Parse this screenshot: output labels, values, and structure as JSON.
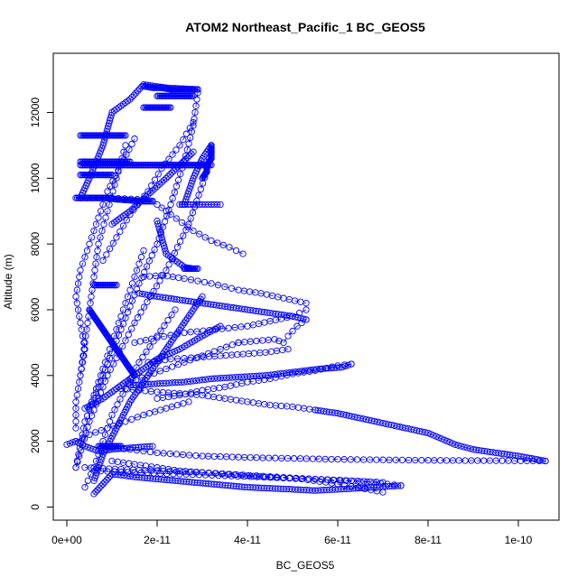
{
  "chart_data": {
    "type": "scatter",
    "title": "ATOM2 Northeast_Pacific_1 BC_GEOS5",
    "xlabel": "BC_GEOS5",
    "ylabel": "Altitude (m)",
    "xlim": [
      -3e-12,
      1.09e-10
    ],
    "ylim": [
      -400,
      13800
    ],
    "x_ticks": [
      0,
      2e-11,
      4e-11,
      6e-11,
      8e-11,
      1e-10
    ],
    "x_tick_labels": [
      "0e+00",
      "2e-11",
      "4e-11",
      "6e-11",
      "8e-11",
      "1e-10"
    ],
    "y_ticks": [
      0,
      2000,
      4000,
      6000,
      8000,
      10000,
      12000
    ],
    "y_tick_labels": [
      "0",
      "2000",
      "4000",
      "6000",
      "8000",
      "10000",
      "12000"
    ],
    "marker": "open-circle",
    "connected": true,
    "grid": false,
    "legend": "none",
    "colors": {
      "series": "#0000ff",
      "axis": "#000000",
      "background": "#ffffff"
    },
    "series": [
      {
        "x": [
          3e-12,
          5e-12,
          8e-12,
          1e-11,
          1.4e-11,
          1.7e-11,
          2.2e-11,
          2.9e-11
        ],
        "y": [
          9400,
          10000,
          11000,
          12000,
          12400,
          12850,
          12750,
          12700
        ]
      },
      {
        "x": [
          2.9e-11,
          2.8e-11,
          2.6e-11,
          2.3e-11,
          2e-11,
          1.6e-11,
          1.2e-11,
          8e-12,
          4e-12,
          2e-12
        ],
        "y": [
          12600,
          11600,
          10500,
          9200,
          8000,
          6800,
          5400,
          4000,
          2600,
          1200
        ]
      },
      {
        "x": [
          2e-12,
          5e-12,
          9e-12,
          1.5e-11,
          2.2e-11,
          2.7e-11,
          3.1e-11,
          3.2e-11
        ],
        "y": [
          1200,
          2600,
          4000,
          5600,
          7200,
          8600,
          10200,
          11000
        ]
      },
      {
        "x": [
          3.2e-11,
          3e-11,
          2.8e-11,
          2.7e-11,
          2.6e-11,
          2.5e-11,
          2.8e-11,
          3.4e-11
        ],
        "y": [
          11000,
          10600,
          10000,
          9600,
          9200,
          9200,
          9200,
          9200
        ]
      },
      {
        "x": [
          3e-12,
          1e-11,
          1.7e-11,
          1.9e-11
        ],
        "y": [
          9400,
          9400,
          9350,
          9300
        ]
      },
      {
        "x": [
          1.9e-11,
          2.3e-11,
          2.8e-11,
          3.2e-11,
          3.6e-11,
          3.9e-11
        ],
        "y": [
          9300,
          8900,
          8400,
          8100,
          7900,
          7700
        ]
      },
      {
        "x": [
          2e-11,
          2.1e-11,
          2.2e-11,
          2.6e-11,
          2.8e-11
        ],
        "y": [
          8700,
          8200,
          7700,
          7300,
          7250
        ]
      },
      {
        "x": [
          1.7e-11,
          2.1e-11,
          2.6e-11,
          3.2e-11,
          3.8e-11,
          4.3e-11,
          4.8e-11,
          5.3e-11
        ],
        "y": [
          7000,
          7050,
          6950,
          6800,
          6600,
          6500,
          6350,
          6200
        ]
      },
      {
        "x": [
          5.3e-11,
          5e-11,
          4.5e-11,
          4e-11,
          3.3e-11,
          2.6e-11,
          2e-11,
          1.5e-11
        ],
        "y": [
          6000,
          5800,
          5650,
          5500,
          5400,
          5300,
          5150,
          5000
        ]
      },
      {
        "x": [
          1.6e-11,
          2e-11,
          2.5e-11,
          3e-11,
          3.5e-11,
          4e-11,
          4.5e-11,
          5e-11,
          5.3e-11
        ],
        "y": [
          6500,
          6400,
          6300,
          6200,
          6100,
          6000,
          5900,
          5800,
          5700
        ]
      },
      {
        "x": [
          5.3e-11,
          5.1e-11,
          4.9e-11,
          4.8e-11,
          4.6e-11,
          4.2e-11,
          3.8e-11
        ],
        "y": [
          5700,
          5500,
          5200,
          5000,
          5100,
          5050,
          5000
        ]
      },
      {
        "x": [
          3.8e-11,
          3.4e-11,
          3e-11,
          2.6e-11,
          2.2e-11,
          1.8e-11,
          1.4e-11
        ],
        "y": [
          5000,
          4800,
          4600,
          4400,
          4200,
          4000,
          3800
        ]
      },
      {
        "x": [
          1.4e-11,
          2e-11,
          2.6e-11,
          3.2e-11,
          3.8e-11,
          4.4e-11,
          5e-11,
          5.6e-11,
          6.1e-11,
          6.3e-11
        ],
        "y": [
          3700,
          3750,
          3800,
          3900,
          3950,
          4000,
          4100,
          4200,
          4250,
          4350
        ]
      },
      {
        "x": [
          6.3e-11,
          6e-11,
          5.5e-11,
          5e-11,
          4.5e-11,
          4e-11,
          3.5e-11,
          3e-11,
          2.5e-11,
          2e-11
        ],
        "y": [
          4350,
          4300,
          4150,
          4050,
          3900,
          3800,
          3650,
          3550,
          3400,
          3300
        ]
      },
      {
        "x": [
          1.2e-11,
          1.6e-11,
          2e-11,
          2.5e-11,
          3e-11,
          3.5e-11,
          4e-11,
          4.5e-11,
          5e-11,
          5.5e-11
        ],
        "y": [
          3600,
          3550,
          3500,
          3450,
          3400,
          3300,
          3200,
          3100,
          3050,
          2950
        ]
      },
      {
        "x": [
          5.5e-11,
          6e-11,
          6.5e-11,
          7e-11,
          7.5e-11,
          8e-11,
          8.6e-11,
          9e-11,
          9.5e-11,
          1e-10,
          1.06e-10
        ],
        "y": [
          2950,
          2850,
          2700,
          2550,
          2400,
          2250,
          1900,
          1750,
          1650,
          1550,
          1400
        ]
      },
      {
        "x": [
          1.06e-10,
          8e-11,
          6e-11,
          4.2e-11,
          3e-11,
          2e-11,
          1.4e-11,
          1e-11
        ],
        "y": [
          1400,
          1420,
          1450,
          1500,
          1550,
          1650,
          1750,
          1800
        ]
      },
      {
        "x": [
          1e-11,
          1.5e-11,
          2e-11,
          2.5e-11,
          3e-11,
          3.6e-11,
          4.2e-11,
          4.8e-11,
          5.5e-11,
          6.2e-11,
          6.8e-11,
          7.4e-11
        ],
        "y": [
          1400,
          1300,
          1200,
          1100,
          1050,
          1000,
          950,
          900,
          850,
          800,
          750,
          650
        ]
      },
      {
        "x": [
          7.4e-11,
          6.8e-11,
          6.2e-11,
          5.5e-11,
          4.8e-11,
          4e-11,
          3.2e-11,
          2.4e-11,
          1.6e-11,
          1e-11,
          8e-12,
          6e-12
        ],
        "y": [
          650,
          600,
          550,
          500,
          550,
          600,
          700,
          800,
          900,
          1000,
          700,
          400
        ]
      },
      {
        "x": [
          6e-12,
          1.5e-11,
          2.5e-11,
          3.5e-11,
          4.5e-11,
          5.5e-11,
          6.3e-11,
          7e-11
        ],
        "y": [
          1100,
          1050,
          1000,
          950,
          900,
          850,
          800,
          750
        ]
      },
      {
        "x": [
          4e-12,
          1.2e-11,
          2e-11,
          3e-11,
          4e-11,
          5.2e-11,
          6e-11,
          6.6e-11,
          7e-11
        ],
        "y": [
          1200,
          1150,
          1100,
          1050,
          950,
          850,
          700,
          550,
          450
        ]
      },
      {
        "x": [
          0.0,
          2e-12,
          4e-12,
          7e-12,
          1e-11,
          1.4e-11,
          1.9e-11
        ],
        "y": [
          1900,
          2000,
          1850,
          1700,
          1750,
          1800,
          1850
        ]
      },
      {
        "x": [
          2e-12,
          2e-12,
          3e-12,
          4e-12,
          3e-12,
          2e-12,
          3e-12,
          5e-12,
          7e-12,
          9e-12,
          1.2e-11,
          1.5e-11
        ],
        "y": [
          2400,
          3200,
          4000,
          4800,
          5600,
          6400,
          7200,
          8000,
          8800,
          9600,
          10400,
          11200
        ]
      },
      {
        "x": [
          4e-12,
          6e-12,
          8e-12,
          1e-11,
          1.3e-11,
          1.6e-11,
          2e-11,
          2.4e-11
        ],
        "y": [
          600,
          1200,
          2000,
          2800,
          3600,
          4400,
          5200,
          6000
        ]
      },
      {
        "x": [
          6e-12,
          8e-12,
          1.1e-11,
          1.4e-11,
          1.8e-11,
          2.2e-11,
          2.6e-11,
          3e-11
        ],
        "y": [
          800,
          1600,
          2400,
          3200,
          4000,
          4800,
          5600,
          6400
        ]
      },
      {
        "x": [
          5e-12,
          7e-12,
          9e-12,
          1.1e-11,
          1.3e-11,
          1.5e-11,
          1.7e-11
        ],
        "y": [
          3000,
          3800,
          4600,
          5400,
          6200,
          7000,
          7800
        ]
      },
      {
        "x": [
          8e-12,
          1.1e-11,
          1.4e-11,
          1.8e-11,
          2.1e-11,
          2.5e-11,
          2.8e-11
        ],
        "y": [
          7500,
          8200,
          8900,
          9600,
          10300,
          11000,
          11700
        ]
      },
      {
        "x": [
          1e-11,
          1.4e-11,
          1.8e-11,
          2.2e-11,
          2.5e-11,
          2.8e-11
        ],
        "y": [
          8600,
          9000,
          9500,
          10000,
          10400,
          10800
        ]
      },
      {
        "x": [
          3e-12,
          4e-12,
          5e-12,
          6e-12,
          7e-12,
          9e-12,
          1.1e-11,
          1.3e-11
        ],
        "y": [
          4000,
          5000,
          6000,
          7000,
          8000,
          9000,
          10000,
          11000
        ]
      },
      {
        "x": [
          2e-12,
          5e-12,
          9e-12,
          1.3e-11,
          1.7e-11,
          2.2e-11,
          2.7e-11
        ],
        "y": [
          2000,
          2200,
          2400,
          2600,
          2800,
          3000,
          3200
        ]
      },
      {
        "x": [
          4e-12,
          8e-12,
          1.2e-11,
          1.6e-11,
          2e-11,
          2.5e-11,
          3e-11,
          3.4e-11
        ],
        "y": [
          3000,
          3300,
          3700,
          4100,
          4500,
          4800,
          5200,
          5500
        ]
      },
      {
        "x": [
          1.8e-11,
          2.3e-11,
          2.9e-11,
          3.4e-11,
          3.9e-11,
          4.4e-11,
          4.9e-11
        ],
        "y": [
          4400,
          4500,
          4550,
          4600,
          4650,
          4700,
          4800
        ]
      }
    ],
    "dense_segments": [
      {
        "x": [
          2e-12,
          3e-12,
          4e-12,
          5e-12,
          6e-12,
          7e-12,
          8e-12,
          9e-12,
          1e-11,
          1.1e-11,
          1.2e-11,
          1.3e-11,
          1.4e-11,
          1.5e-11,
          1.6e-11,
          1.7e-11,
          1.8e-11,
          1.9e-11
        ],
        "y": [
          9400,
          9400,
          9400,
          9400,
          9400,
          9400,
          9400,
          9400,
          9380,
          9360,
          9350,
          9340,
          9330,
          9320,
          9310,
          9300,
          9300,
          9300
        ]
      },
      {
        "x": [
          3e-12,
          4e-12,
          5e-12,
          6e-12,
          7e-12,
          8e-12,
          9e-12,
          1e-11,
          1.1e-11,
          1.2e-11,
          1.3e-11,
          1.4e-11
        ],
        "y": [
          10500,
          10500,
          10500,
          10500,
          10500,
          10500,
          10500,
          10500,
          10500,
          10500,
          10500,
          10500
        ]
      },
      {
        "x": [
          3e-12,
          5e-12,
          7e-12,
          9e-12,
          1.1e-11,
          1.3e-11,
          1.5e-11,
          1.7e-11,
          1.9e-11,
          2.1e-11,
          2.3e-11,
          2.5e-11,
          2.7e-11,
          2.9e-11,
          3.1e-11,
          3.2e-11
        ],
        "y": [
          10400,
          10400,
          10400,
          10400,
          10400,
          10400,
          10400,
          10400,
          10400,
          10400,
          10400,
          10400,
          10400,
          10400,
          10400,
          10400
        ]
      },
      {
        "x": [
          3e-12,
          4e-12,
          5e-12,
          6e-12,
          7e-12,
          8e-12,
          9e-12,
          1e-11
        ],
        "y": [
          10100,
          10100,
          10100,
          10100,
          10100,
          10100,
          10100,
          10100
        ]
      },
      {
        "x": [
          3e-12,
          4e-12,
          5e-12,
          6e-12,
          7e-12,
          8e-12,
          9e-12,
          1e-11,
          1.1e-11,
          1.2e-11,
          1.3e-11
        ],
        "y": [
          11300,
          11300,
          11300,
          11300,
          11300,
          11300,
          11300,
          11300,
          11300,
          11300,
          11300
        ]
      },
      {
        "x": [
          2e-11,
          2.1e-11,
          2.2e-11,
          2.3e-11,
          2.4e-11,
          2.5e-11,
          2.6e-11,
          2.7e-11,
          2.8e-11
        ],
        "y": [
          12500,
          12500,
          12500,
          12500,
          12500,
          12500,
          12500,
          12500,
          12500
        ]
      },
      {
        "x": [
          1.7e-11,
          1.8e-11,
          1.9e-11,
          2e-11,
          2.1e-11,
          2.2e-11,
          2.3e-11
        ],
        "y": [
          12150,
          12150,
          12150,
          12150,
          12150,
          12150,
          12150
        ]
      },
      {
        "x": [
          1.7e-11,
          1.9e-11,
          2.1e-11,
          2.3e-11,
          2.5e-11,
          2.7e-11,
          2.9e-11
        ],
        "y": [
          12800,
          12750,
          12750,
          12700,
          12700,
          12700,
          12700
        ]
      },
      {
        "x": [
          2.6e-11,
          2.7e-11,
          2.8e-11,
          2.9e-11
        ],
        "y": [
          7250,
          7250,
          7250,
          7250
        ]
      },
      {
        "x": [
          6e-12,
          7e-12,
          8e-12,
          9e-12,
          1e-11,
          1.1e-11
        ],
        "y": [
          6750,
          6750,
          6750,
          6750,
          6750,
          6750
        ]
      },
      {
        "x": [
          7e-12,
          8e-12,
          9e-12,
          1e-11,
          1.1e-11,
          1.2e-11
        ],
        "y": [
          1850,
          1850,
          1850,
          1850,
          1850,
          1850
        ]
      },
      {
        "x": [
          5e-12,
          6e-12,
          7e-12,
          8e-12,
          9e-12,
          1e-11,
          1.1e-11,
          1.2e-11,
          1.3e-11,
          1.4e-11,
          1.5e-11
        ],
        "y": [
          6000,
          5800,
          5600,
          5400,
          5200,
          5000,
          4800,
          4600,
          4400,
          4200,
          4000
        ]
      },
      {
        "x": [
          3.2e-11,
          3.2e-11,
          3.2e-11,
          3.1e-11,
          3.1e-11,
          3e-11
        ],
        "y": [
          11000,
          10800,
          10600,
          10400,
          10200,
          10000
        ]
      }
    ]
  }
}
